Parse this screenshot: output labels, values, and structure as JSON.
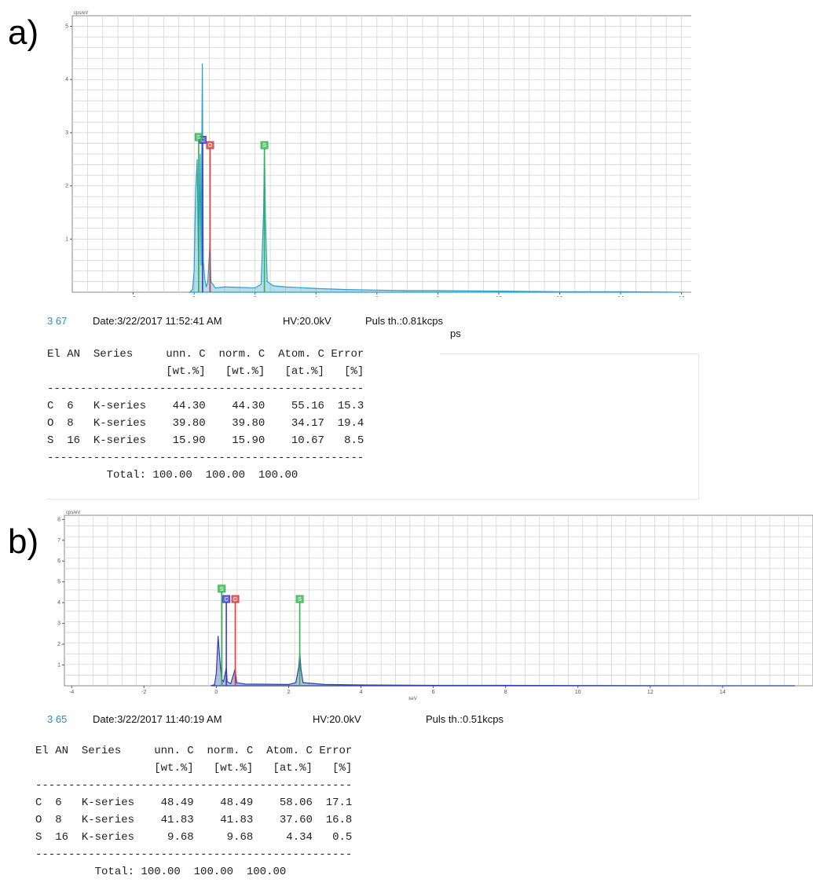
{
  "panels": [
    {
      "label": "a)",
      "spectrum_id": "3 67",
      "date": "Date:3/22/2017 11:52:41 AM",
      "hv": "HV:20.0kV",
      "puls": "Puls th.:0.81kcps",
      "puls_overflow": "ps",
      "table": {
        "header1": [
          "El",
          "AN",
          "Series",
          "unn. C",
          "norm. C",
          "Atom. C",
          "Error"
        ],
        "header2": [
          "",
          "",
          "",
          "[wt.%]",
          "[wt.%]",
          "[at.%]",
          "[%]"
        ],
        "rows": [
          [
            "C",
            "6",
            "K-series",
            "44.30",
            "44.30",
            "55.16",
            "15.3"
          ],
          [
            "O",
            "8",
            "K-series",
            "39.80",
            "39.80",
            "34.17",
            "19.4"
          ],
          [
            "S",
            "16",
            "K-series",
            "15.90",
            "15.90",
            "10.67",
            "8.5"
          ]
        ],
        "total_label": "Total:",
        "totals": [
          "100.00",
          "100.00",
          "100.00"
        ]
      }
    },
    {
      "label": "b)",
      "spectrum_id": "3 65",
      "date": "Date:3/22/2017 11:40:19 AM",
      "hv": "HV:20.0kV",
      "puls": "Puls th.:0.51kcps",
      "table": {
        "header1": [
          "El",
          "AN",
          "Series",
          "unn. C",
          "norm. C",
          "Atom. C",
          "Error"
        ],
        "header2": [
          "",
          "",
          "",
          "[wt.%]",
          "[wt.%]",
          "[at.%]",
          "[%]"
        ],
        "rows": [
          [
            "C",
            "6",
            "K-series",
            "48.49",
            "48.49",
            "58.06",
            "17.1"
          ],
          [
            "O",
            "8",
            "K-series",
            "41.83",
            "41.83",
            "37.60",
            "16.8"
          ],
          [
            "S",
            "16",
            "K-series",
            "9.68",
            "9.68",
            "4.34",
            "0.5"
          ]
        ],
        "total_label": "Total:",
        "totals": [
          "100.00",
          "100.00",
          "100.00"
        ]
      }
    }
  ],
  "colors": {
    "spectrum_a": "#2a9fc9",
    "spectrum_b": "#2b3fa6",
    "marker_C": "#3b3bd6",
    "marker_O": "#d63b3b",
    "marker_S": "#2fb54a",
    "grid": "#d4d4d4",
    "id_text": "#2e8bb8"
  },
  "chart_data": [
    {
      "type": "line",
      "panel": "a)",
      "ylabel": "cps/eV",
      "xlabel": "keV",
      "xlim": [
        -4,
        16.5
      ],
      "ylim": [
        0,
        5.2
      ],
      "x_ticks": [
        -2,
        0,
        2,
        4,
        6,
        8,
        10,
        12,
        14,
        16
      ],
      "y_ticks": [
        1,
        2,
        3,
        4,
        5
      ],
      "grid": true,
      "series": [
        {
          "points": [
            [
              -0.15,
              0
            ],
            [
              -0.05,
              0.05
            ],
            [
              0.0,
              0.4
            ],
            [
              0.05,
              1.9
            ],
            [
              0.1,
              2.5
            ],
            [
              0.15,
              0.3
            ],
            [
              0.2,
              2.6
            ],
            [
              0.23,
              0.5
            ],
            [
              0.27,
              4.3
            ],
            [
              0.3,
              0.6
            ],
            [
              0.35,
              0.25
            ],
            [
              0.4,
              0.1
            ],
            [
              0.45,
              0.2
            ],
            [
              0.52,
              0.9
            ],
            [
              0.55,
              0.2
            ],
            [
              0.7,
              0.08
            ],
            [
              1.0,
              0.1
            ],
            [
              1.5,
              0.09
            ],
            [
              2.0,
              0.08
            ],
            [
              2.2,
              0.15
            ],
            [
              2.28,
              1.5
            ],
            [
              2.31,
              2.7
            ],
            [
              2.34,
              1.4
            ],
            [
              2.4,
              0.2
            ],
            [
              2.6,
              0.12
            ],
            [
              3.0,
              0.1
            ],
            [
              4.0,
              0.07
            ],
            [
              5.0,
              0.05
            ],
            [
              6.0,
              0.04
            ],
            [
              7.0,
              0.03
            ],
            [
              8.0,
              0.03
            ],
            [
              10.0,
              0.02
            ],
            [
              12.0,
              0.01
            ],
            [
              14.0,
              0.01
            ],
            [
              16.0,
              0.0
            ]
          ]
        }
      ],
      "element_markers": [
        {
          "symbol": "C",
          "energy": 0.277,
          "height": 2.8
        },
        {
          "symbol": "O",
          "energy": 0.525,
          "height": 2.7
        },
        {
          "symbol": "S",
          "energy": 2.307,
          "height": 2.7
        },
        {
          "symbol": "S",
          "energy": 0.149,
          "height": 2.85
        }
      ]
    },
    {
      "type": "line",
      "panel": "b)",
      "ylabel": "cps/eV",
      "xlabel": "keV",
      "xlim": [
        -4.2,
        16.5
      ],
      "ylim": [
        0,
        8.2
      ],
      "x_ticks": [
        -4,
        -2,
        0,
        2,
        4,
        6,
        8,
        10,
        12,
        14
      ],
      "y_ticks": [
        1,
        2,
        3,
        4,
        5,
        6,
        7,
        8
      ],
      "grid": true,
      "series": [
        {
          "points": [
            [
              -0.15,
              0
            ],
            [
              -0.05,
              0.05
            ],
            [
              0.0,
              0.6
            ],
            [
              0.05,
              2.4
            ],
            [
              0.1,
              1.2
            ],
            [
              0.15,
              0.3
            ],
            [
              0.2,
              0.2
            ],
            [
              0.28,
              0.9
            ],
            [
              0.3,
              0.2
            ],
            [
              0.4,
              0.1
            ],
            [
              0.52,
              0.8
            ],
            [
              0.56,
              0.15
            ],
            [
              0.8,
              0.08
            ],
            [
              1.5,
              0.07
            ],
            [
              2.0,
              0.06
            ],
            [
              2.2,
              0.15
            ],
            [
              2.28,
              0.9
            ],
            [
              2.31,
              1.6
            ],
            [
              2.34,
              0.8
            ],
            [
              2.4,
              0.15
            ],
            [
              3.0,
              0.06
            ],
            [
              4.0,
              0.04
            ],
            [
              6.0,
              0.02
            ],
            [
              8.0,
              0.02
            ],
            [
              10.0,
              0.01
            ],
            [
              14.0,
              0.0
            ],
            [
              16.0,
              0.0
            ]
          ]
        }
      ],
      "element_markers": [
        {
          "symbol": "C",
          "energy": 0.277,
          "height": 4.0
        },
        {
          "symbol": "O",
          "energy": 0.525,
          "height": 4.0
        },
        {
          "symbol": "S",
          "energy": 2.307,
          "height": 4.0
        },
        {
          "symbol": "S",
          "energy": 0.149,
          "height": 4.5
        }
      ]
    }
  ]
}
